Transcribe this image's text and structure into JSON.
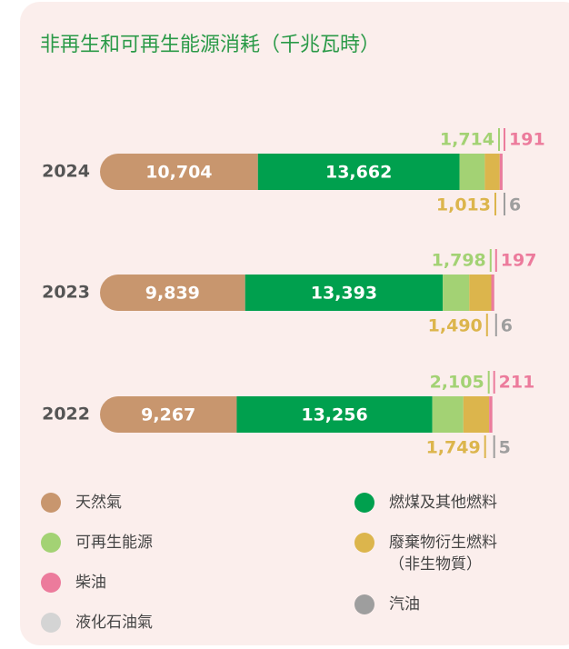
{
  "chart_data": {
    "type": "stacked-bar-horizontal",
    "title": "非再生和可再生能源消耗（千兆瓦時）",
    "categories": [
      "2024",
      "2023",
      "2022"
    ],
    "series": [
      {
        "name": "天然氣",
        "color": "#c8966e",
        "values": [
          10704,
          9839,
          9267
        ],
        "value_labels": [
          "10,704",
          "9,839",
          "9,267"
        ]
      },
      {
        "name": "燃煤及其他燃料",
        "color": "#00a04e",
        "values": [
          13662,
          13393,
          13256
        ],
        "value_labels": [
          "13,662",
          "13,393",
          "13,256"
        ]
      },
      {
        "name": "可再生能源",
        "color": "#a3d274",
        "values": [
          1714,
          1798,
          2105
        ],
        "value_labels": [
          "1,714",
          "1,798",
          "2,105"
        ]
      },
      {
        "name": "廢棄物衍生燃料（非生物質）",
        "color": "#dcb54c",
        "values": [
          1013,
          1490,
          1749
        ],
        "value_labels": [
          "1,013",
          "1,490",
          "1,749"
        ]
      },
      {
        "name": "柴油",
        "color": "#ec7b9c",
        "values": [
          191,
          197,
          211
        ]
      },
      {
        "name": "汽油",
        "color": "#9e9e9e",
        "values": [
          6,
          6,
          5
        ]
      },
      {
        "name": "液化石油氣",
        "color": "#d4d4d4",
        "values": [
          null,
          null,
          null
        ]
      }
    ]
  }
}
